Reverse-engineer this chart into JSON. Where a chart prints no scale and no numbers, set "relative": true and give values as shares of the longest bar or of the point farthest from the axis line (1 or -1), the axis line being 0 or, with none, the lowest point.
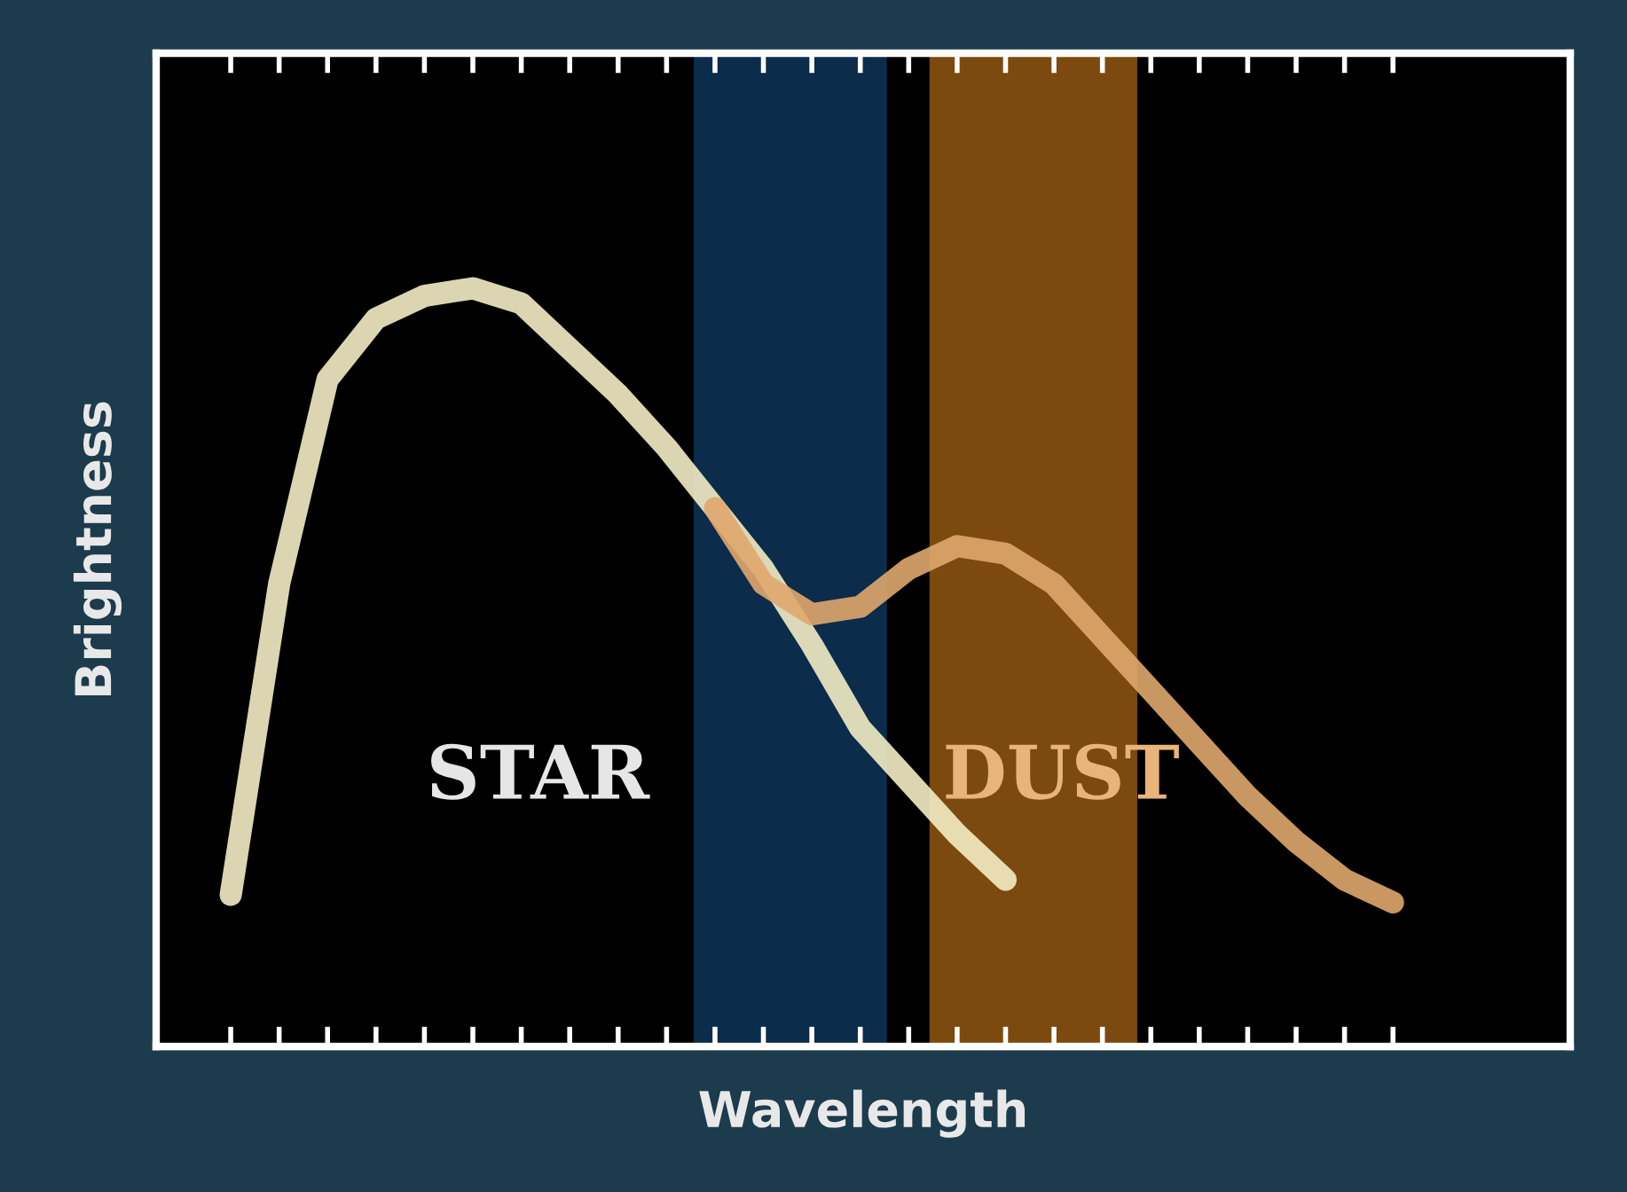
{
  "chart_data": {
    "type": "line",
    "xlabel": "Wavelength",
    "ylabel": "Brightness",
    "relative": true,
    "categories": [
      null,
      null,
      null,
      null,
      null,
      null,
      null,
      null,
      null,
      null,
      null,
      null,
      null,
      null,
      null,
      null,
      null,
      null,
      null,
      null,
      null,
      null,
      null,
      null,
      null
    ],
    "series": [
      {
        "color": "#f3ecc4",
        "values": [
          0.2,
          0.61,
          0.88,
          0.96,
          0.99,
          1.0,
          0.98,
          0.92,
          0.86,
          0.79,
          0.71,
          0.63,
          0.53,
          0.42,
          0.35,
          0.28,
          0.22,
          null,
          null,
          null,
          null,
          null,
          null,
          null,
          null
        ]
      },
      {
        "color": "#dfa76c",
        "values": [
          null,
          null,
          null,
          null,
          null,
          null,
          null,
          null,
          null,
          null,
          0.71,
          0.61,
          0.57,
          0.58,
          0.63,
          0.66,
          0.65,
          0.61,
          0.54,
          0.47,
          0.4,
          0.33,
          0.27,
          0.22,
          0.19
        ]
      }
    ],
    "annotations": [
      "STAR",
      "DUST"
    ],
    "grid": false,
    "legend": false,
    "line_style": "solid",
    "marker": "none"
  }
}
